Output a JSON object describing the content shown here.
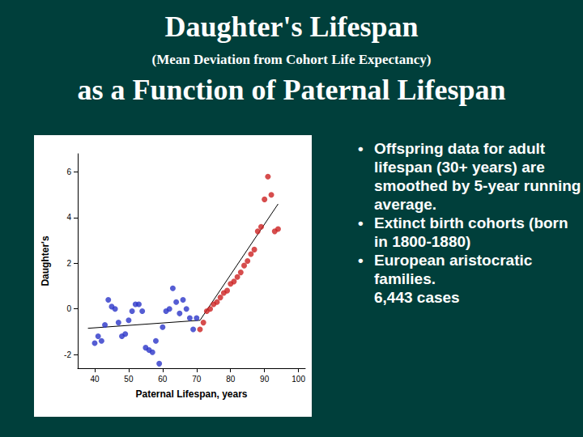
{
  "chart_data": {
    "type": "scatter",
    "title": "Daughter's Lifespan",
    "subtitle": "(Mean Deviation from Cohort Life Expectancy)",
    "title_2": "as a Function of Paternal Lifespan",
    "xlabel": "Paternal Lifespan, years",
    "ylabel": "Daughter's",
    "annotations": [
      "Offspring data for adult lifespan (30+ years) are smoothed by 5-year running average.",
      "Extinct birth cohorts (born in 1800-1880)",
      "European aristocratic families.\n6,443 cases"
    ],
    "xlim": [
      35,
      102
    ],
    "ylim": [
      -2.6,
      6.8
    ],
    "xticks": [
      40,
      50,
      60,
      70,
      80,
      90,
      100
    ],
    "yticks": [
      -2,
      0,
      2,
      4,
      6
    ],
    "grid": false,
    "series": [
      {
        "type": "scatter",
        "color": "#2a35c8",
        "marker": "circle",
        "x": [
          40,
          41,
          42,
          43,
          44,
          45,
          46,
          47,
          48,
          49,
          50,
          51,
          52,
          53,
          54,
          55,
          56,
          57,
          58,
          59,
          60,
          61,
          62,
          63,
          64,
          65,
          66,
          67,
          68,
          69,
          70
        ],
        "values": [
          -1.5,
          -1.2,
          -1.4,
          -0.7,
          0.4,
          0.1,
          0.0,
          -0.6,
          -1.2,
          -1.1,
          -0.5,
          -0.1,
          0.2,
          0.2,
          -0.1,
          -1.7,
          -1.8,
          -1.9,
          -1.4,
          -2.4,
          -0.8,
          -0.1,
          0.0,
          0.9,
          0.3,
          -0.2,
          0.4,
          0.0,
          -0.4,
          -0.9,
          -0.4
        ]
      },
      {
        "type": "scatter",
        "color": "#cc2020",
        "marker": "circle",
        "x": [
          71,
          72,
          73,
          74,
          75,
          76,
          77,
          78,
          79,
          80,
          81,
          82,
          83,
          84,
          85,
          86,
          87,
          88,
          89,
          90,
          91,
          92,
          93,
          94
        ],
        "values": [
          -0.9,
          -0.6,
          -0.1,
          0.0,
          0.2,
          0.3,
          0.5,
          0.7,
          0.8,
          1.1,
          1.2,
          1.4,
          1.6,
          1.9,
          2.1,
          2.4,
          2.6,
          3.4,
          3.6,
          4.8,
          5.8,
          5.0,
          3.4,
          3.5
        ]
      },
      {
        "type": "line",
        "color": "#000000",
        "line_style": "solid",
        "x": [
          38,
          71
        ],
        "values": [
          -0.85,
          -0.5
        ]
      },
      {
        "type": "line",
        "color": "#000000",
        "line_style": "solid",
        "x": [
          71,
          94
        ],
        "values": [
          -0.5,
          4.6
        ]
      }
    ]
  }
}
